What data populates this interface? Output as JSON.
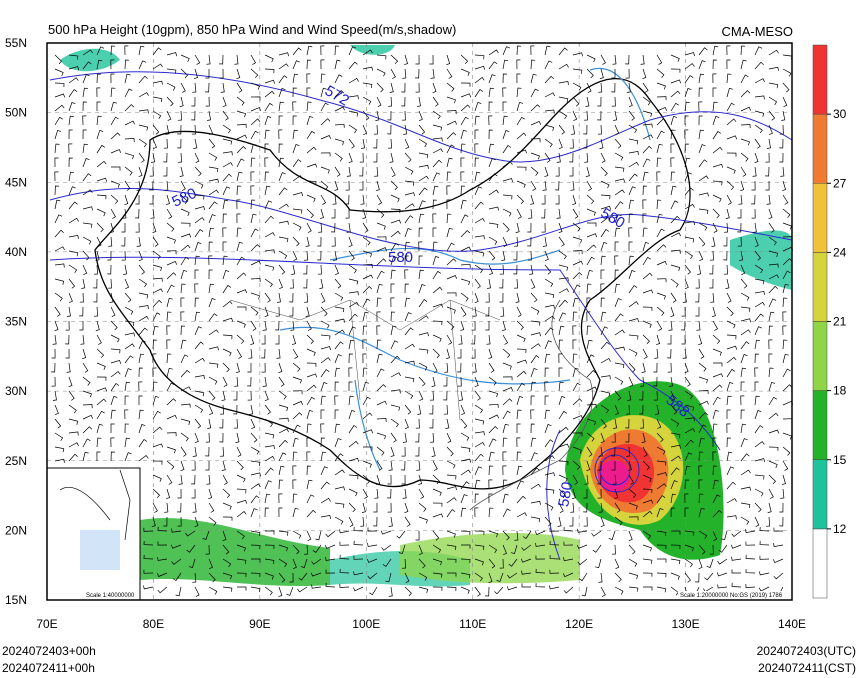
{
  "header": {
    "title": "500 hPa Height (10gpm), 850 hPa Wind and Wind Speed(m/s,shadow)",
    "source": "CMA-MESO"
  },
  "map": {
    "lat_lim": [
      15,
      55
    ],
    "lat_ticks": [
      {
        "value": 55,
        "label": "55N"
      },
      {
        "value": 50,
        "label": "50N"
      },
      {
        "value": 45,
        "label": "45N"
      },
      {
        "value": 40,
        "label": "40N"
      },
      {
        "value": 35,
        "label": "35N"
      },
      {
        "value": 30,
        "label": "30N"
      },
      {
        "value": 25,
        "label": "25N"
      },
      {
        "value": 20,
        "label": "20N"
      },
      {
        "value": 15,
        "label": "15N"
      }
    ],
    "lon_lim": [
      70,
      140
    ],
    "lon_ticks": [
      {
        "value": 70,
        "label": "70E"
      },
      {
        "value": 80,
        "label": "80E"
      },
      {
        "value": 90,
        "label": "90E"
      },
      {
        "value": 100,
        "label": "100E"
      },
      {
        "value": 110,
        "label": "110E"
      },
      {
        "value": 120,
        "label": "120E"
      },
      {
        "value": 130,
        "label": "130E"
      },
      {
        "value": 140,
        "label": "140E"
      }
    ],
    "contour_labels": [
      "572",
      "580",
      "580",
      "580",
      "588",
      "580"
    ],
    "inset_scale": "Scale 1:40000000",
    "map_note": "Scale 1:20000000 No:GS (2019) 1786"
  },
  "colorbar": {
    "lim": [
      9,
      33
    ],
    "ticks": [
      12,
      15,
      18,
      21,
      24,
      27,
      30
    ],
    "colors": [
      "#ffffff",
      "#1fc39b",
      "#23b22a",
      "#8fd548",
      "#d6d43c",
      "#f0c23a",
      "#ef7a32",
      "#f03434",
      "#ee1b8c"
    ]
  },
  "footer": {
    "left": [
      "2024072403+00h",
      "2024072411+00h"
    ],
    "right": [
      "2024072403(UTC)",
      "2024072411(CST)"
    ]
  }
}
